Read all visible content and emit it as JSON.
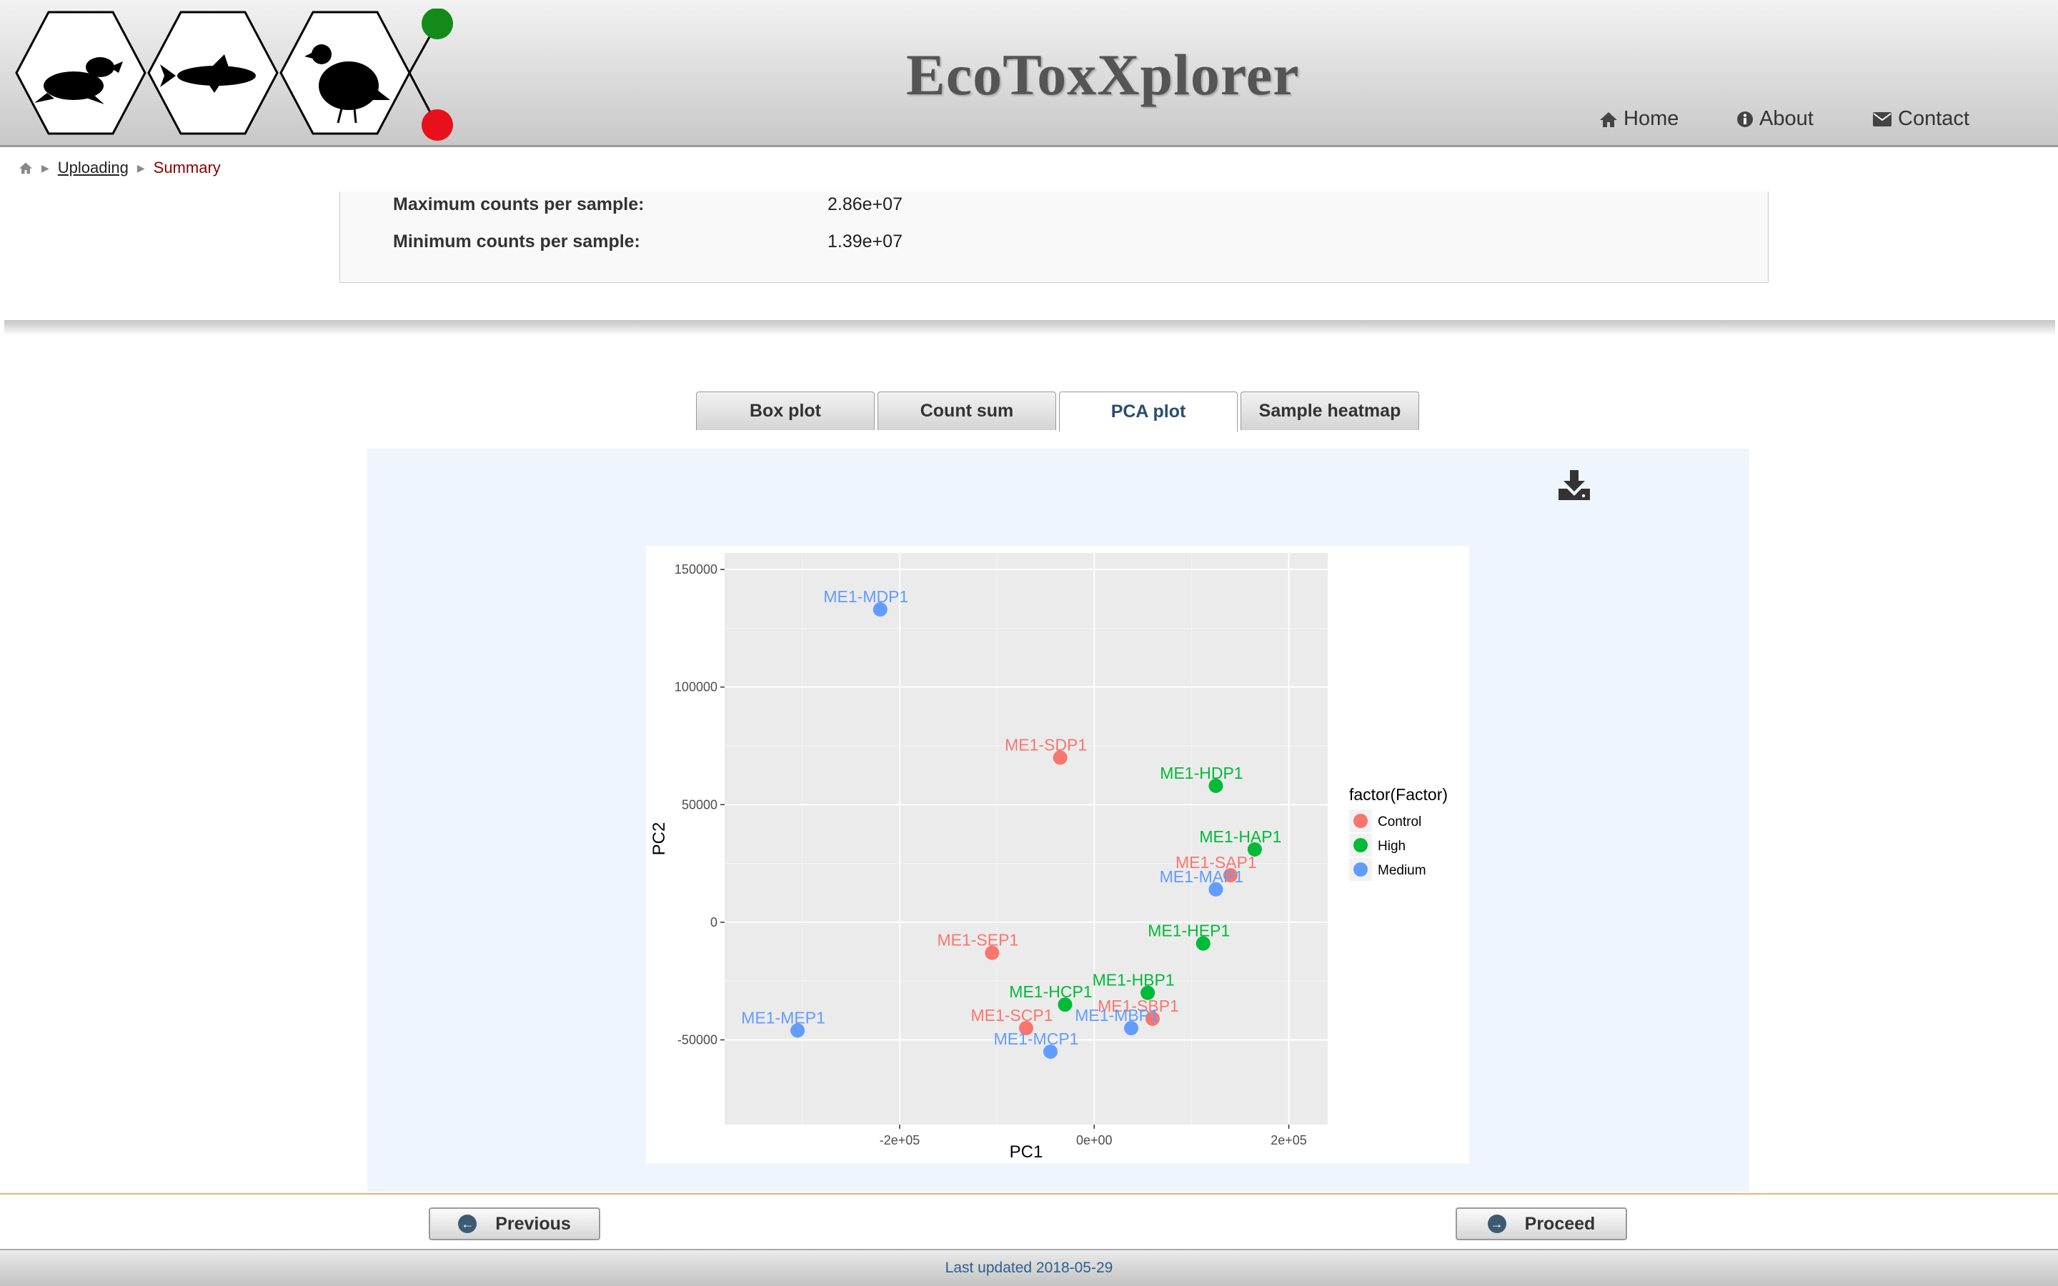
{
  "header": {
    "title": "EcoToxXplorer",
    "logo_icons": [
      "frog-icon",
      "fish-icon",
      "quail-icon"
    ],
    "nav": [
      {
        "label": "Home",
        "icon": "home-icon"
      },
      {
        "label": "About",
        "icon": "info-icon"
      },
      {
        "label": "Contact",
        "icon": "envelope-icon"
      }
    ]
  },
  "breadcrumb": {
    "home_icon": "home-icon",
    "link": "Uploading",
    "current": "Summary"
  },
  "summary": {
    "rows": [
      {
        "label": "Maximum counts per sample:",
        "value": "2.86e+07"
      },
      {
        "label": "Minimum counts per sample:",
        "value": "1.39e+07"
      }
    ]
  },
  "tabs": [
    {
      "label": "Box plot",
      "active": false
    },
    {
      "label": "Count sum",
      "active": false
    },
    {
      "label": "PCA plot",
      "active": true
    },
    {
      "label": "Sample heatmap",
      "active": false
    }
  ],
  "download_icon": "download-icon",
  "chart_data": {
    "type": "scatter",
    "title": "",
    "xlabel": "PC1",
    "ylabel": "PC2",
    "xlim": [
      -380000,
      240000
    ],
    "ylim": [
      -86000,
      157000
    ],
    "xticks": [
      -200000,
      0,
      200000
    ],
    "xtick_labels": [
      "-2e+05",
      "0e+00",
      "2e+05"
    ],
    "yticks": [
      -50000,
      0,
      50000,
      100000,
      150000
    ],
    "ytick_labels": [
      "-50000",
      "0",
      "50000",
      "100000",
      "150000"
    ],
    "legend_title": "factor(Factor)",
    "legend_position": "right",
    "grid": true,
    "series": [
      {
        "name": "Control",
        "color": "#f8766d",
        "points": [
          {
            "label": "ME1-SDP1",
            "x": -35000,
            "y": 70000
          },
          {
            "label": "ME1-SAP1",
            "x": 140000,
            "y": 20000
          },
          {
            "label": "ME1-SEP1",
            "x": -105000,
            "y": -13000
          },
          {
            "label": "ME1-SCP1",
            "x": -70000,
            "y": -45000
          },
          {
            "label": "ME1-SBP1",
            "x": 60000,
            "y": -41000
          }
        ]
      },
      {
        "name": "High",
        "color": "#00ba38",
        "points": [
          {
            "label": "ME1-HDP1",
            "x": 125000,
            "y": 58000
          },
          {
            "label": "ME1-HAP1",
            "x": 165000,
            "y": 31000
          },
          {
            "label": "ME1-HEP1",
            "x": 112000,
            "y": -9000
          },
          {
            "label": "ME1-HBP1",
            "x": 55000,
            "y": -30000
          },
          {
            "label": "ME1-HCP1",
            "x": -30000,
            "y": -35000
          }
        ]
      },
      {
        "name": "Medium",
        "color": "#619cff",
        "points": [
          {
            "label": "ME1-MDP1",
            "x": -220000,
            "y": 133000
          },
          {
            "label": "ME1-MAP1",
            "x": 125000,
            "y": 14000
          },
          {
            "label": "ME1-MBP1",
            "x": 38000,
            "y": -45000
          },
          {
            "label": "ME1-MCP1",
            "x": -45000,
            "y": -55000
          },
          {
            "label": "ME1-MEP1",
            "x": -305000,
            "y": -46000
          }
        ]
      }
    ]
  },
  "buttons": {
    "previous": "Previous",
    "proceed": "Proceed"
  },
  "footer": {
    "text": "Last updated 2018-05-29"
  }
}
